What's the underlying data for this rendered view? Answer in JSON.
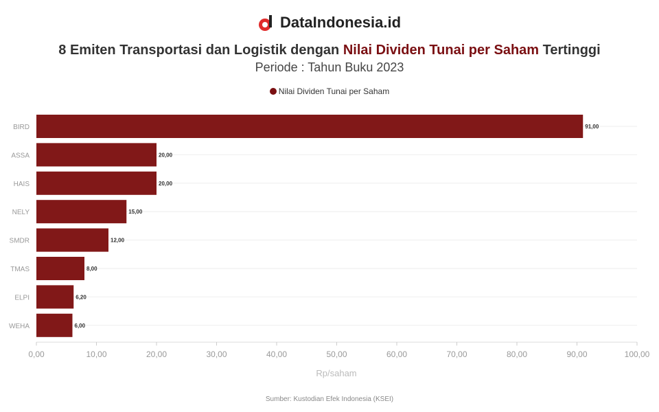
{
  "brand": "DataIndonesia.id",
  "title_pre": "8 Emiten Transportasi dan Logistik dengan ",
  "title_highlight": "Nilai Dividen Tunai per Saham",
  "title_post": " Tertinggi",
  "subtitle": "Periode : Tahun Buku 2023",
  "source": "Sumber: Kustodian Efek Indonesia (KSEI)",
  "colors": {
    "bar": "#811818",
    "accent": "#7a0f12"
  },
  "chart_data": {
    "type": "bar",
    "orientation": "horizontal",
    "categories": [
      "BIRD",
      "ASSA",
      "HAIS",
      "NELY",
      "SMDR",
      "TMAS",
      "ELPI",
      "WEHA"
    ],
    "series": [
      {
        "name": "Nilai Dividen Tunai per Saham",
        "values": [
          91,
          20,
          20,
          15,
          12,
          8,
          6.2,
          6
        ]
      }
    ],
    "data_labels": [
      "91,00",
      "20,00",
      "20,00",
      "15,00",
      "12,00",
      "8,00",
      "6,20",
      "6,00"
    ],
    "xlabel": "Rp/saham",
    "xlim": [
      0,
      100
    ],
    "xticks": [
      "0,00",
      "10,00",
      "20,00",
      "30,00",
      "40,00",
      "50,00",
      "60,00",
      "70,00",
      "80,00",
      "90,00",
      "100,00"
    ],
    "legend": "top",
    "grid": true
  }
}
